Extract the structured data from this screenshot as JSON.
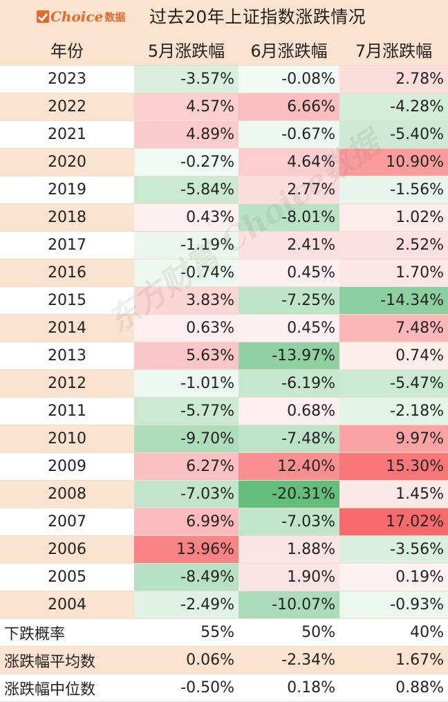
{
  "logo": {
    "brand": "Choice",
    "suffix": "数据"
  },
  "title": "过去20年上证指数涨跌情况",
  "columns": [
    "年份",
    "5月涨跌幅",
    "6月涨跌幅",
    "7月涨跌幅"
  ],
  "rows": [
    {
      "year": "2023",
      "may": "-3.57%",
      "jun": "-0.08%",
      "jul": "2.78%"
    },
    {
      "year": "2022",
      "may": "4.57%",
      "jun": "6.66%",
      "jul": "-4.28%"
    },
    {
      "year": "2021",
      "may": "4.89%",
      "jun": "-0.67%",
      "jul": "-5.40%"
    },
    {
      "year": "2020",
      "may": "-0.27%",
      "jun": "4.64%",
      "jul": "10.90%"
    },
    {
      "year": "2019",
      "may": "-5.84%",
      "jun": "2.77%",
      "jul": "-1.56%"
    },
    {
      "year": "2018",
      "may": "0.43%",
      "jun": "-8.01%",
      "jul": "1.02%"
    },
    {
      "year": "2017",
      "may": "-1.19%",
      "jun": "2.41%",
      "jul": "2.52%"
    },
    {
      "year": "2016",
      "may": "-0.74%",
      "jun": "0.45%",
      "jul": "1.70%"
    },
    {
      "year": "2015",
      "may": "3.83%",
      "jun": "-7.25%",
      "jul": "-14.34%"
    },
    {
      "year": "2014",
      "may": "0.63%",
      "jun": "0.45%",
      "jul": "7.48%"
    },
    {
      "year": "2013",
      "may": "5.63%",
      "jun": "-13.97%",
      "jul": "0.74%"
    },
    {
      "year": "2012",
      "may": "-1.01%",
      "jun": "-6.19%",
      "jul": "-5.47%"
    },
    {
      "year": "2011",
      "may": "-5.77%",
      "jun": "0.68%",
      "jul": "-2.18%"
    },
    {
      "year": "2010",
      "may": "-9.70%",
      "jun": "-7.48%",
      "jul": "9.97%"
    },
    {
      "year": "2009",
      "may": "6.27%",
      "jun": "12.40%",
      "jul": "15.30%"
    },
    {
      "year": "2008",
      "may": "-7.03%",
      "jun": "-20.31%",
      "jul": "1.45%"
    },
    {
      "year": "2007",
      "may": "6.99%",
      "jun": "-7.03%",
      "jul": "17.02%"
    },
    {
      "year": "2006",
      "may": "13.96%",
      "jun": "1.88%",
      "jul": "-3.56%"
    },
    {
      "year": "2005",
      "may": "-8.49%",
      "jun": "1.90%",
      "jul": "0.19%"
    },
    {
      "year": "2004",
      "may": "-2.49%",
      "jun": "-10.07%",
      "jul": "-0.93%"
    }
  ],
  "summary": [
    {
      "label": "下跌概率",
      "may": "55%",
      "jun": "50%",
      "jul": "40%"
    },
    {
      "label": "涨跌幅平均数",
      "may": "0.06%",
      "jun": "-2.34%",
      "jul": "1.67%"
    },
    {
      "label": "涨跌幅中位数",
      "may": "-0.50%",
      "jun": "0.18%",
      "jul": "0.88%"
    }
  ],
  "watermark": "东方财富 Choice数据",
  "colors": {
    "header_bg": "#fbe3cf",
    "up": "#f8696b",
    "down": "#63be7b",
    "neutral": "#ffffff",
    "brand": "#e8682a"
  }
}
